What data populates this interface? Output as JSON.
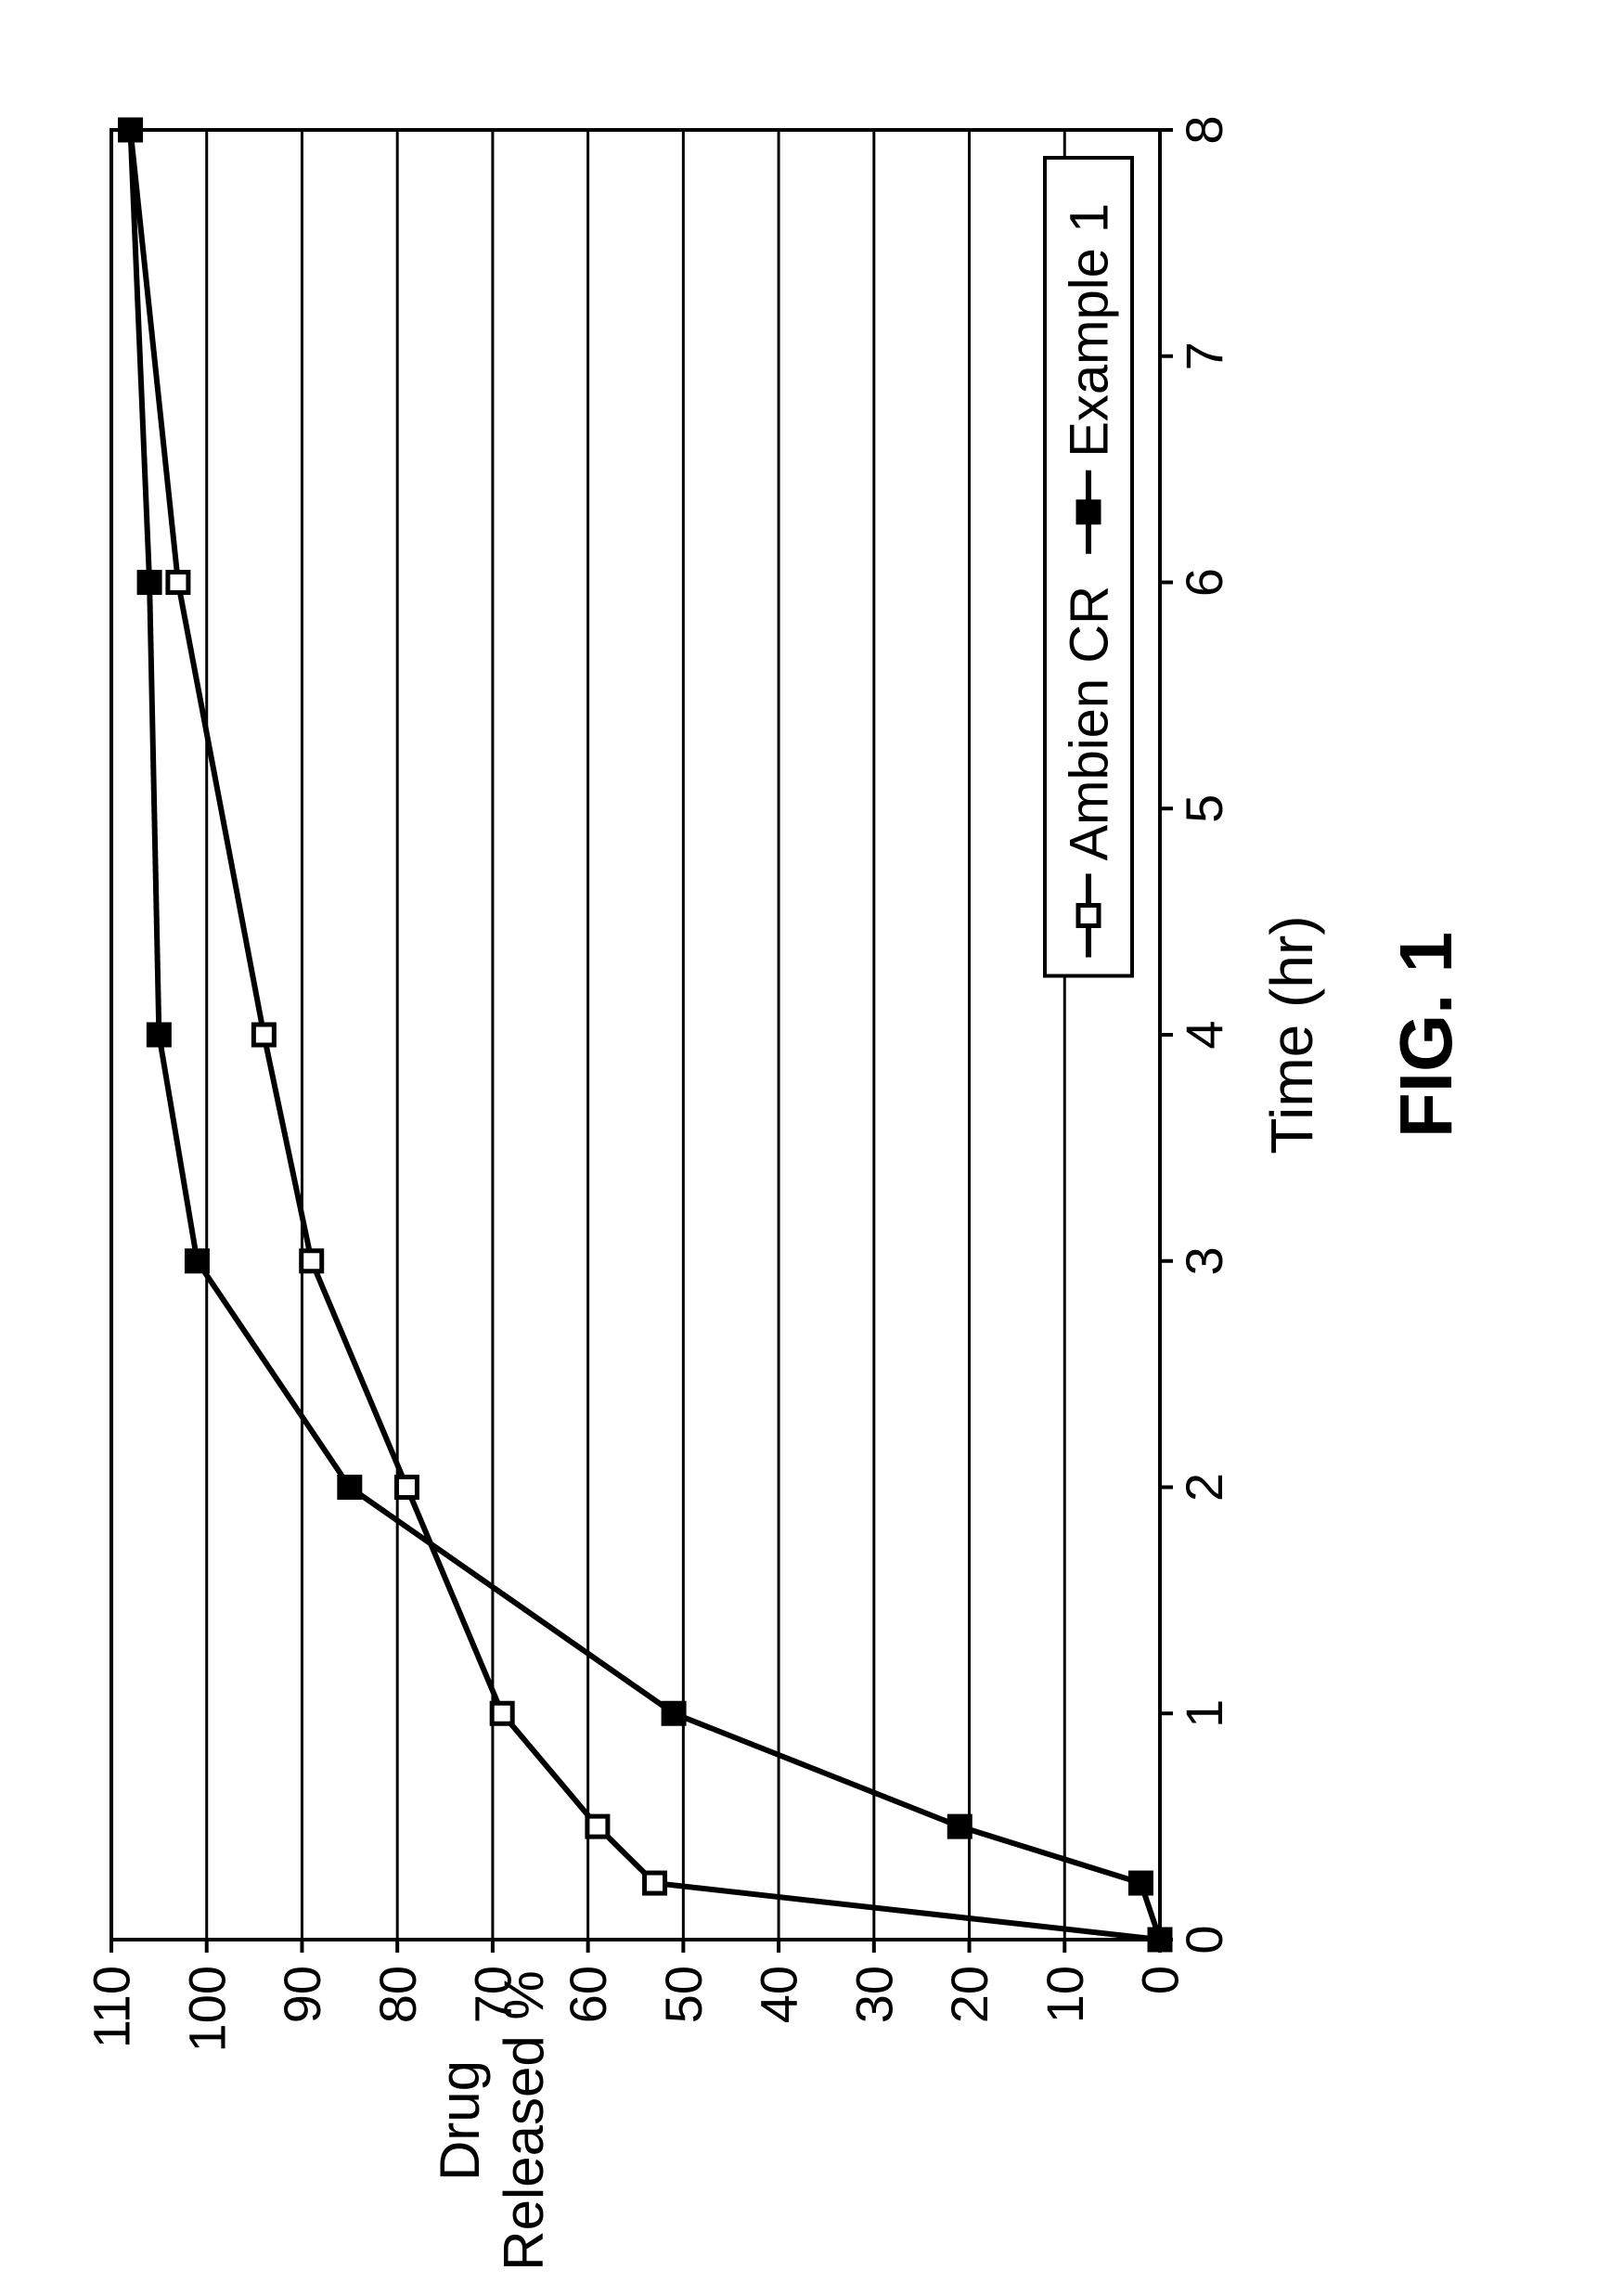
{
  "figure_label": "FIG. 1",
  "caption_fontsize": 80,
  "caption_fontweight": "bold",
  "chart": {
    "type": "line",
    "orientation": "rotated-90ccw",
    "background_color": "#ffffff",
    "grid_color": "#000000",
    "axis_color": "#000000",
    "line_color": "#000000",
    "line_width": 6,
    "marker_size": 22,
    "axis_line_width": 4,
    "grid_line_width": 3,
    "tick_length": 14,
    "x_axis": {
      "label": "Time (hr)",
      "label_fontsize": 64,
      "tick_fontsize": 56,
      "min": 0,
      "max": 8,
      "tick_step": 1,
      "ticks": [
        0,
        1,
        2,
        3,
        4,
        5,
        6,
        7,
        8
      ]
    },
    "y_axis": {
      "label_line1": "Drug",
      "label_line2": "Released %",
      "label_fontsize": 60,
      "tick_fontsize": 56,
      "min": 0,
      "max": 110,
      "tick_step": 10,
      "ticks": [
        0,
        10,
        20,
        30,
        40,
        50,
        60,
        70,
        80,
        90,
        100,
        110
      ]
    },
    "series": [
      {
        "name": "Ambien CR",
        "marker": "open-square",
        "marker_fill": "#ffffff",
        "marker_stroke": "#000000",
        "points": [
          {
            "x": 0,
            "y": 0
          },
          {
            "x": 0.25,
            "y": 53
          },
          {
            "x": 0.5,
            "y": 59
          },
          {
            "x": 1,
            "y": 69
          },
          {
            "x": 2,
            "y": 79
          },
          {
            "x": 3,
            "y": 89
          },
          {
            "x": 4,
            "y": 94
          },
          {
            "x": 6,
            "y": 103
          },
          {
            "x": 8,
            "y": 108
          }
        ]
      },
      {
        "name": "Example 1",
        "marker": "filled-square",
        "marker_fill": "#000000",
        "marker_stroke": "#000000",
        "points": [
          {
            "x": 0,
            "y": 0
          },
          {
            "x": 0.25,
            "y": 2
          },
          {
            "x": 0.5,
            "y": 21
          },
          {
            "x": 1,
            "y": 51
          },
          {
            "x": 2,
            "y": 85
          },
          {
            "x": 3,
            "y": 101
          },
          {
            "x": 4,
            "y": 105
          },
          {
            "x": 6,
            "y": 106
          },
          {
            "x": 8,
            "y": 108
          }
        ]
      }
    ],
    "legend": {
      "text_fontsize": 58,
      "border_color": "#000000",
      "border_width": 4,
      "background": "#ffffff"
    }
  }
}
